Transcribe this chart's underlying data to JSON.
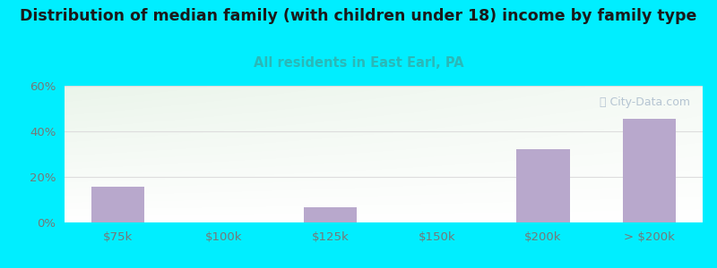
{
  "title": "Distribution of median family (with children under 18) income by family type",
  "subtitle": "All residents in East Earl, PA",
  "categories": [
    "$75k",
    "$100k",
    "$125k",
    "$150k",
    "$200k",
    "> $200k"
  ],
  "values": [
    15.5,
    0,
    6.5,
    0,
    32.0,
    45.5
  ],
  "bar_color": "#b8a8cc",
  "ylim": [
    0,
    60
  ],
  "yticks": [
    0,
    20,
    40,
    60
  ],
  "ytick_labels": [
    "0%",
    "20%",
    "40%",
    "60%"
  ],
  "background_outer": "#00eeff",
  "background_plot_top_left": "#d8eed8",
  "background_plot_top_right": "#eaf5f5",
  "background_plot_bottom": "#f8ffff",
  "title_color": "#1a1a1a",
  "subtitle_color": "#2ab8b8",
  "tick_color": "#777777",
  "grid_color": "#dddddd",
  "title_fontsize": 12.5,
  "subtitle_fontsize": 10.5,
  "tick_fontsize": 9.5,
  "watermark_color": "#aabbcc",
  "bar_width": 0.5
}
